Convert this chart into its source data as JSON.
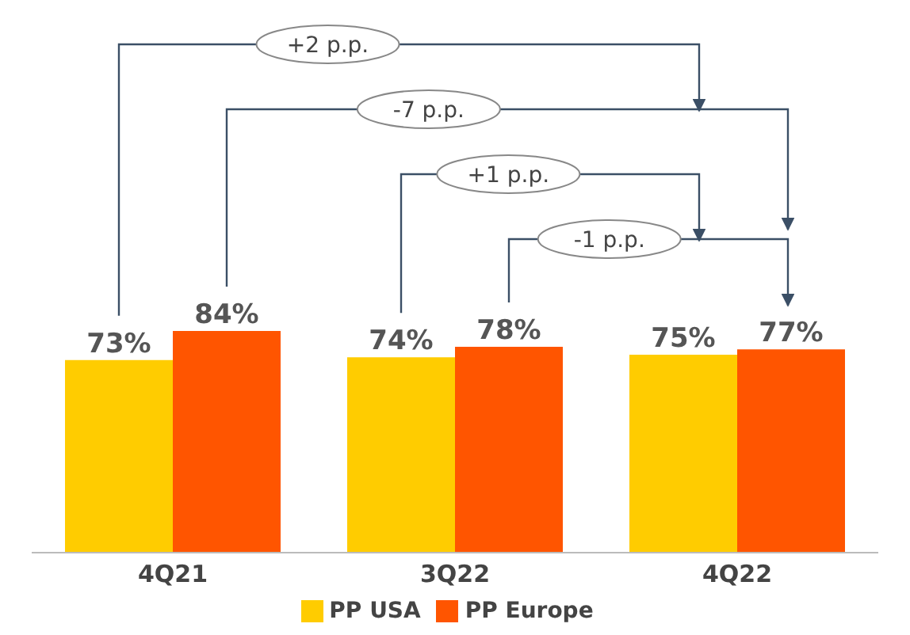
{
  "chart_data": {
    "type": "bar",
    "categories": [
      "4Q21",
      "3Q22",
      "4Q22"
    ],
    "series": [
      {
        "name": "PP USA",
        "color": "#ffcc00",
        "values": [
          73,
          74,
          75
        ],
        "value_labels": [
          "73%",
          "74%",
          "75%"
        ]
      },
      {
        "name": "PP Europe",
        "color": "#ff5500",
        "values": [
          84,
          78,
          77
        ],
        "value_labels": [
          "84%",
          "78%",
          "77%"
        ]
      }
    ],
    "legend": "bottom",
    "grid": false,
    "annotations": [
      "+2 p.p.",
      "-7 p.p.",
      "+1 p.p.",
      "-1 p.p."
    ]
  }
}
